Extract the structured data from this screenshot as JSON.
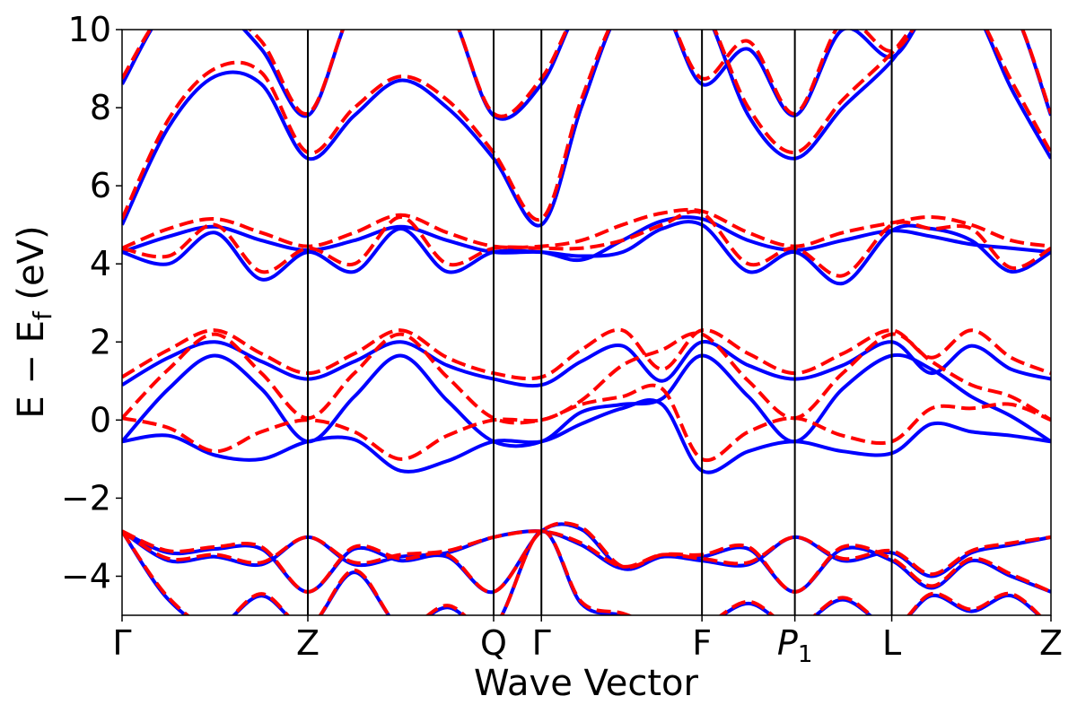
{
  "chart_data": {
    "type": "line",
    "title": "",
    "xlabel": "Wave Vector",
    "ylabel": "E − E_f (eV)",
    "ylabel_parts": {
      "main": "E  −  E",
      "sub": "f",
      "unit": " (eV)"
    },
    "ylim": [
      -5,
      10
    ],
    "yticks": [
      -4,
      -2,
      0,
      2,
      4,
      6,
      8,
      10
    ],
    "ytick_labels": [
      "−4",
      "−2",
      "0",
      "2",
      "4",
      "6",
      "8",
      "10"
    ],
    "xlim": [
      0,
      7
    ],
    "kpoints": [
      {
        "label": "Γ",
        "x": 0
      },
      {
        "label": "Z",
        "x": 1.4
      },
      {
        "label": "Q",
        "x": 2.8
      },
      {
        "label": "Γ",
        "x": 3.16
      },
      {
        "label": "F",
        "x": 4.37
      },
      {
        "label": "P",
        "sub": "1",
        "italic": true,
        "x": 5.07
      },
      {
        "label": "L",
        "x": 5.8
      },
      {
        "label": "Z",
        "x": 7.0
      }
    ],
    "grid": false,
    "legend": "none",
    "colors": {
      "blue": "#0000ff",
      "red": "#ff0000"
    },
    "series": [
      {
        "color": "#0000ff",
        "style": "solid",
        "x": [
          0,
          0.35,
          0.7,
          1.05,
          1.4,
          1.75,
          2.1,
          2.45,
          2.8,
          3.16,
          3.46,
          3.77,
          4.07,
          4.37,
          4.72,
          5.07,
          5.43,
          5.8,
          6.1,
          6.4,
          6.7,
          7.0
        ],
        "y": [
          -0.55,
          -0.4,
          -0.9,
          -1.0,
          -0.55,
          -0.5,
          -1.3,
          -1.05,
          -0.55,
          -0.55,
          -0.1,
          0.3,
          0.4,
          -1.3,
          -0.8,
          -0.55,
          -0.8,
          -0.85,
          -0.1,
          -0.3,
          -0.4,
          -0.55
        ]
      },
      {
        "color": "#0000ff",
        "style": "solid",
        "x": [
          0,
          0.35,
          0.7,
          1.05,
          1.4,
          1.75,
          2.1,
          2.45,
          2.8,
          3.16,
          3.46,
          3.77,
          4.07,
          4.37,
          4.72,
          5.07,
          5.43,
          5.8,
          6.1,
          6.4,
          6.7,
          7.0
        ],
        "y": [
          -0.55,
          0.8,
          1.65,
          0.8,
          -0.55,
          0.6,
          1.65,
          0.5,
          -0.55,
          -0.55,
          0.2,
          0.4,
          0.55,
          1.65,
          0.6,
          -0.55,
          0.8,
          1.65,
          1.3,
          0.6,
          0.1,
          -0.55
        ]
      },
      {
        "color": "#0000ff",
        "style": "solid",
        "x": [
          0,
          0.35,
          0.7,
          1.05,
          1.4,
          1.75,
          2.1,
          2.45,
          2.8,
          3.16,
          3.46,
          3.77,
          4.07,
          4.37,
          4.72,
          5.07,
          5.43,
          5.8,
          6.1,
          6.4,
          6.7,
          7.0
        ],
        "y": [
          0.9,
          1.6,
          2.0,
          1.5,
          1.05,
          1.5,
          2.0,
          1.4,
          1.05,
          0.9,
          1.5,
          1.9,
          1.0,
          2.0,
          1.4,
          1.05,
          1.4,
          2.0,
          1.2,
          1.9,
          1.3,
          1.05
        ]
      },
      {
        "color": "#0000ff",
        "style": "solid",
        "x": [
          0,
          0.35,
          0.7,
          1.05,
          1.4,
          1.75,
          2.1,
          2.45,
          2.8,
          3.16,
          3.46,
          3.77,
          4.07,
          4.37,
          4.72,
          5.07,
          5.43,
          5.8,
          6.1,
          6.4,
          6.7,
          7.0
        ],
        "y": [
          4.3,
          4.0,
          4.8,
          3.6,
          4.3,
          3.8,
          4.9,
          3.8,
          4.3,
          4.3,
          4.2,
          4.3,
          4.9,
          5.0,
          3.8,
          4.3,
          3.5,
          4.85,
          4.9,
          4.6,
          3.8,
          4.3
        ]
      },
      {
        "color": "#0000ff",
        "style": "solid",
        "x": [
          0,
          0.35,
          0.7,
          1.05,
          1.4,
          1.75,
          2.1,
          2.45,
          2.8,
          3.16,
          3.46,
          3.77,
          4.07,
          4.37,
          4.72,
          5.07,
          5.43,
          5.8,
          6.1,
          6.4,
          6.7,
          7.0
        ],
        "y": [
          4.3,
          4.7,
          4.95,
          4.6,
          4.35,
          4.6,
          4.95,
          4.6,
          4.3,
          4.3,
          4.1,
          4.6,
          5.1,
          5.15,
          4.6,
          4.35,
          4.6,
          4.85,
          4.7,
          4.5,
          4.4,
          4.3
        ]
      },
      {
        "color": "#0000ff",
        "style": "solid",
        "x": [
          0,
          0.35,
          0.7,
          1.05,
          1.4,
          1.75,
          2.1,
          2.45,
          2.8,
          3.16,
          3.46,
          3.77,
          4.07,
          4.37,
          4.72,
          5.07,
          5.43,
          5.8,
          6.1,
          6.4,
          6.7,
          7.0
        ],
        "y": [
          5.0,
          7.5,
          8.8,
          8.6,
          6.7,
          7.8,
          8.7,
          8.0,
          6.7,
          5.0,
          8.0,
          10.6,
          10.6,
          10.6,
          7.8,
          6.7,
          8.0,
          9.2,
          10.6,
          10.6,
          8.5,
          6.7
        ]
      },
      {
        "color": "#0000ff",
        "style": "solid",
        "x": [
          0,
          0.35,
          0.7,
          1.05,
          1.4,
          1.75,
          2.1,
          2.45,
          2.8,
          3.16,
          3.46,
          3.77,
          4.07,
          4.37,
          4.72,
          5.07,
          5.43,
          5.8,
          6.1,
          6.4,
          6.7,
          7.0
        ],
        "y": [
          8.6,
          10.6,
          10.6,
          9.5,
          7.8,
          10.6,
          10.6,
          10.6,
          7.8,
          8.6,
          10.6,
          10.6,
          10.6,
          8.6,
          9.5,
          7.8,
          10.0,
          9.3,
          10.6,
          10.6,
          10.6,
          7.8
        ]
      },
      {
        "color": "#0000ff",
        "style": "solid",
        "x": [
          0,
          0.35,
          0.7,
          1.05,
          1.4,
          1.75,
          2.1,
          2.45,
          2.8,
          3.16,
          3.46,
          3.77,
          4.07,
          4.37,
          4.72,
          5.07,
          5.43,
          5.8,
          6.1,
          6.4,
          6.7,
          7.0
        ],
        "y": [
          -2.85,
          -3.6,
          -3.5,
          -3.7,
          -3.0,
          -3.7,
          -3.5,
          -3.4,
          -3.0,
          -2.85,
          -3.2,
          -3.8,
          -3.5,
          -3.6,
          -3.7,
          -3.0,
          -3.6,
          -3.4,
          -4.0,
          -3.4,
          -3.2,
          -3.0
        ]
      },
      {
        "color": "#0000ff",
        "style": "solid",
        "x": [
          0,
          0.35,
          0.7,
          1.05,
          1.4,
          1.75,
          2.1,
          2.45,
          2.8,
          3.16,
          3.46,
          3.77,
          4.07,
          4.37,
          4.72,
          5.07,
          5.43,
          5.8,
          6.1,
          6.4,
          6.7,
          7.0
        ],
        "y": [
          -2.85,
          -3.4,
          -3.3,
          -3.3,
          -4.4,
          -3.3,
          -3.6,
          -3.5,
          -4.4,
          -2.85,
          -2.8,
          -3.8,
          -3.5,
          -3.5,
          -3.3,
          -4.4,
          -3.3,
          -3.6,
          -4.3,
          -3.6,
          -4.0,
          -4.4
        ]
      },
      {
        "color": "#0000ff",
        "style": "solid",
        "x": [
          0,
          0.35,
          0.7,
          1.05,
          1.4,
          1.75,
          2.1,
          2.45,
          2.8,
          3.16,
          3.46,
          3.77,
          4.07,
          4.37,
          4.72,
          5.07,
          5.43,
          5.8,
          6.1,
          6.4,
          6.7,
          7.0
        ],
        "y": [
          -2.85,
          -4.6,
          -5.3,
          -4.5,
          -5.3,
          -3.9,
          -5.3,
          -4.8,
          -5.3,
          -2.85,
          -4.7,
          -5.0,
          -5.3,
          -5.3,
          -4.7,
          -5.3,
          -4.6,
          -5.3,
          -4.5,
          -4.9,
          -4.5,
          -5.3
        ]
      },
      {
        "color": "#ff0000",
        "style": "dashed",
        "x": [
          0,
          0.35,
          0.7,
          1.05,
          1.4,
          1.75,
          2.1,
          2.45,
          2.8,
          3.16,
          3.46,
          3.77,
          4.07,
          4.37,
          4.72,
          5.07,
          5.43,
          5.8,
          6.1,
          6.4,
          6.7,
          7.0
        ],
        "y": [
          0.05,
          -0.2,
          -0.8,
          -0.3,
          0.0,
          -0.3,
          -1.0,
          -0.4,
          0.0,
          0.0,
          0.4,
          0.6,
          0.8,
          -1.0,
          -0.3,
          0.05,
          -0.4,
          -0.55,
          0.3,
          0.3,
          0.4,
          0.0
        ]
      },
      {
        "color": "#ff0000",
        "style": "dashed",
        "x": [
          0,
          0.35,
          0.7,
          1.05,
          1.4,
          1.75,
          2.1,
          2.45,
          2.8,
          3.16,
          3.46,
          3.77,
          4.07,
          4.37,
          4.72,
          5.07,
          5.43,
          5.8,
          6.1,
          6.4,
          6.7,
          7.0
        ],
        "y": [
          0.05,
          1.3,
          2.2,
          1.2,
          0.05,
          1.2,
          2.2,
          1.1,
          0.05,
          0.0,
          0.5,
          1.4,
          1.8,
          2.2,
          1.0,
          0.05,
          1.2,
          2.2,
          1.5,
          0.9,
          0.6,
          0.0
        ]
      },
      {
        "color": "#ff0000",
        "style": "dashed",
        "x": [
          0,
          0.35,
          0.7,
          1.05,
          1.4,
          1.75,
          2.1,
          2.45,
          2.8,
          3.16,
          3.46,
          3.77,
          4.07,
          4.37,
          4.72,
          5.07,
          5.43,
          5.8,
          6.1,
          6.4,
          6.7,
          7.0
        ],
        "y": [
          1.1,
          1.8,
          2.3,
          1.7,
          1.2,
          1.7,
          2.3,
          1.6,
          1.2,
          1.1,
          1.8,
          2.3,
          1.3,
          2.3,
          1.7,
          1.2,
          1.7,
          2.3,
          1.6,
          2.3,
          1.6,
          1.2
        ]
      },
      {
        "color": "#ff0000",
        "style": "dashed",
        "x": [
          0,
          0.35,
          0.7,
          1.05,
          1.4,
          1.75,
          2.1,
          2.45,
          2.8,
          3.16,
          3.46,
          3.77,
          4.07,
          4.37,
          4.72,
          5.07,
          5.43,
          5.8,
          6.1,
          6.4,
          6.7,
          7.0
        ],
        "y": [
          4.4,
          4.2,
          5.0,
          3.8,
          4.4,
          4.0,
          5.2,
          4.0,
          4.4,
          4.4,
          4.4,
          4.6,
          5.0,
          5.3,
          4.0,
          4.4,
          3.7,
          5.0,
          4.9,
          4.9,
          3.9,
          4.4
        ]
      },
      {
        "color": "#ff0000",
        "style": "dashed",
        "x": [
          0,
          0.35,
          0.7,
          1.05,
          1.4,
          1.75,
          2.1,
          2.45,
          2.8,
          3.16,
          3.46,
          3.77,
          4.07,
          4.37,
          4.72,
          5.07,
          5.43,
          5.8,
          6.1,
          6.4,
          6.7,
          7.0
        ],
        "y": [
          4.4,
          4.9,
          5.15,
          4.8,
          4.45,
          4.8,
          5.25,
          4.8,
          4.45,
          4.45,
          4.6,
          5.0,
          5.3,
          5.35,
          4.8,
          4.45,
          4.8,
          5.05,
          5.2,
          5.0,
          4.6,
          4.45
        ]
      },
      {
        "color": "#ff0000",
        "style": "dashed",
        "x": [
          0,
          0.35,
          0.7,
          1.05,
          1.4,
          1.75,
          2.1,
          2.45,
          2.8,
          3.16,
          3.46,
          3.77,
          4.07,
          4.37,
          4.72,
          5.07,
          5.43,
          5.8,
          6.1,
          6.4,
          6.7,
          7.0
        ],
        "y": [
          5.15,
          7.7,
          9.0,
          8.9,
          6.85,
          8.0,
          8.8,
          8.2,
          6.85,
          5.15,
          8.2,
          10.6,
          10.6,
          10.6,
          8.0,
          6.85,
          8.2,
          9.4,
          10.6,
          10.6,
          8.7,
          6.85
        ]
      },
      {
        "color": "#ff0000",
        "style": "dashed",
        "x": [
          0,
          0.35,
          0.7,
          1.05,
          1.4,
          1.75,
          2.1,
          2.45,
          2.8,
          3.16,
          3.46,
          3.77,
          4.07,
          4.37,
          4.72,
          5.07,
          5.43,
          5.8,
          6.1,
          6.4,
          6.7,
          7.0
        ],
        "y": [
          8.75,
          10.6,
          10.6,
          9.7,
          7.85,
          10.6,
          10.6,
          10.6,
          7.85,
          8.75,
          10.6,
          10.6,
          10.6,
          8.75,
          9.7,
          7.85,
          10.2,
          9.45,
          10.6,
          10.6,
          10.6,
          7.85
        ]
      },
      {
        "color": "#ff0000",
        "style": "dashed",
        "x": [
          0,
          0.35,
          0.7,
          1.05,
          1.4,
          1.75,
          2.1,
          2.45,
          2.8,
          3.16,
          3.46,
          3.77,
          4.07,
          4.37,
          4.72,
          5.07,
          5.43,
          5.8,
          6.1,
          6.4,
          6.7,
          7.0
        ],
        "y": [
          -2.85,
          -3.55,
          -3.45,
          -3.65,
          -3.0,
          -3.65,
          -3.45,
          -3.35,
          -3.0,
          -2.85,
          -3.15,
          -3.75,
          -3.45,
          -3.55,
          -3.65,
          -3.0,
          -3.55,
          -3.35,
          -3.95,
          -3.35,
          -3.15,
          -3.0
        ]
      },
      {
        "color": "#ff0000",
        "style": "dashed",
        "x": [
          0,
          0.35,
          0.7,
          1.05,
          1.4,
          1.75,
          2.1,
          2.45,
          2.8,
          3.16,
          3.46,
          3.77,
          4.07,
          4.37,
          4.72,
          5.07,
          5.43,
          5.8,
          6.1,
          6.4,
          6.7,
          7.0
        ],
        "y": [
          -2.85,
          -3.35,
          -3.25,
          -3.25,
          -4.4,
          -3.25,
          -3.55,
          -3.45,
          -4.4,
          -2.85,
          -2.75,
          -3.75,
          -3.45,
          -3.45,
          -3.25,
          -4.4,
          -3.25,
          -3.55,
          -4.25,
          -3.55,
          -3.95,
          -4.4
        ]
      },
      {
        "color": "#ff0000",
        "style": "dashed",
        "x": [
          0,
          0.35,
          0.7,
          1.05,
          1.4,
          1.75,
          2.1,
          2.45,
          2.8,
          3.16,
          3.46,
          3.77,
          4.07,
          4.37,
          4.72,
          5.07,
          5.43,
          5.8,
          6.1,
          6.4,
          6.7,
          7.0
        ],
        "y": [
          -2.85,
          -4.55,
          -5.3,
          -4.45,
          -5.3,
          -3.85,
          -5.3,
          -4.75,
          -5.3,
          -2.85,
          -4.65,
          -4.95,
          -5.3,
          -5.3,
          -4.65,
          -5.3,
          -4.55,
          -5.3,
          -4.45,
          -4.85,
          -4.45,
          -5.3
        ]
      }
    ]
  }
}
